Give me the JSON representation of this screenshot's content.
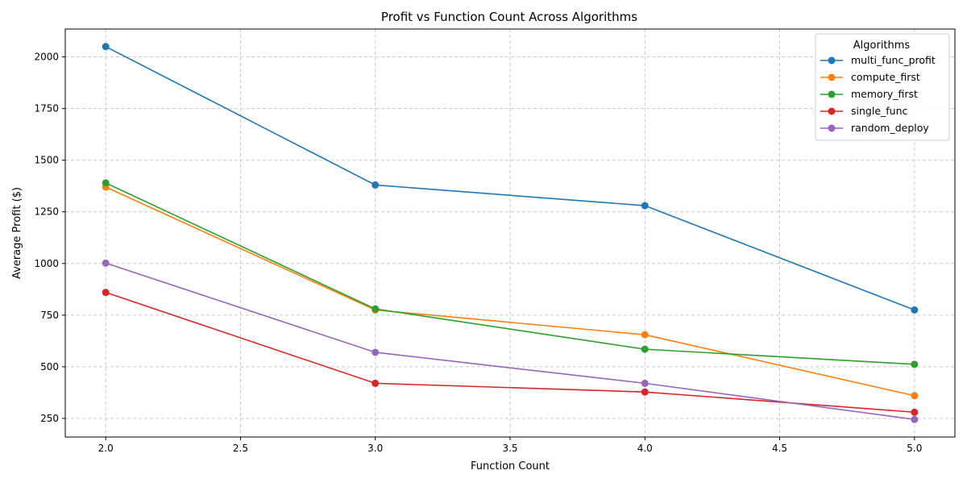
{
  "chart_data": {
    "type": "line",
    "title": "Profit vs Function Count Across Algorithms",
    "xlabel": "Function Count",
    "ylabel": "Average Profit ($)",
    "xlim": [
      1.85,
      5.15
    ],
    "ylim": [
      160,
      2135
    ],
    "xticks": [
      2.0,
      2.5,
      3.0,
      3.5,
      4.0,
      4.5,
      5.0
    ],
    "xtick_labels": [
      "2.0",
      "2.5",
      "3.0",
      "3.5",
      "4.0",
      "4.5",
      "5.0"
    ],
    "yticks": [
      250,
      500,
      750,
      1000,
      1250,
      1500,
      1750,
      2000
    ],
    "ytick_labels": [
      "250",
      "500",
      "750",
      "1000",
      "1250",
      "1500",
      "1750",
      "2000"
    ],
    "grid": true,
    "legend_title": "Algorithms",
    "legend_position": "top-right",
    "x": [
      2,
      3,
      4,
      5
    ],
    "series": [
      {
        "name": "multi_func_profit",
        "color": "#1f77b4",
        "values": [
          2050,
          1380,
          1280,
          775
        ]
      },
      {
        "name": "compute_first",
        "color": "#ff7f0e",
        "values": [
          1370,
          775,
          655,
          360
        ]
      },
      {
        "name": "memory_first",
        "color": "#2ca02c",
        "values": [
          1390,
          780,
          585,
          512
        ]
      },
      {
        "name": "single_func",
        "color": "#d62728",
        "values": [
          860,
          420,
          378,
          280
        ]
      },
      {
        "name": "random_deploy",
        "color": "#9467bd",
        "values": [
          1002,
          570,
          420,
          245
        ]
      }
    ]
  }
}
